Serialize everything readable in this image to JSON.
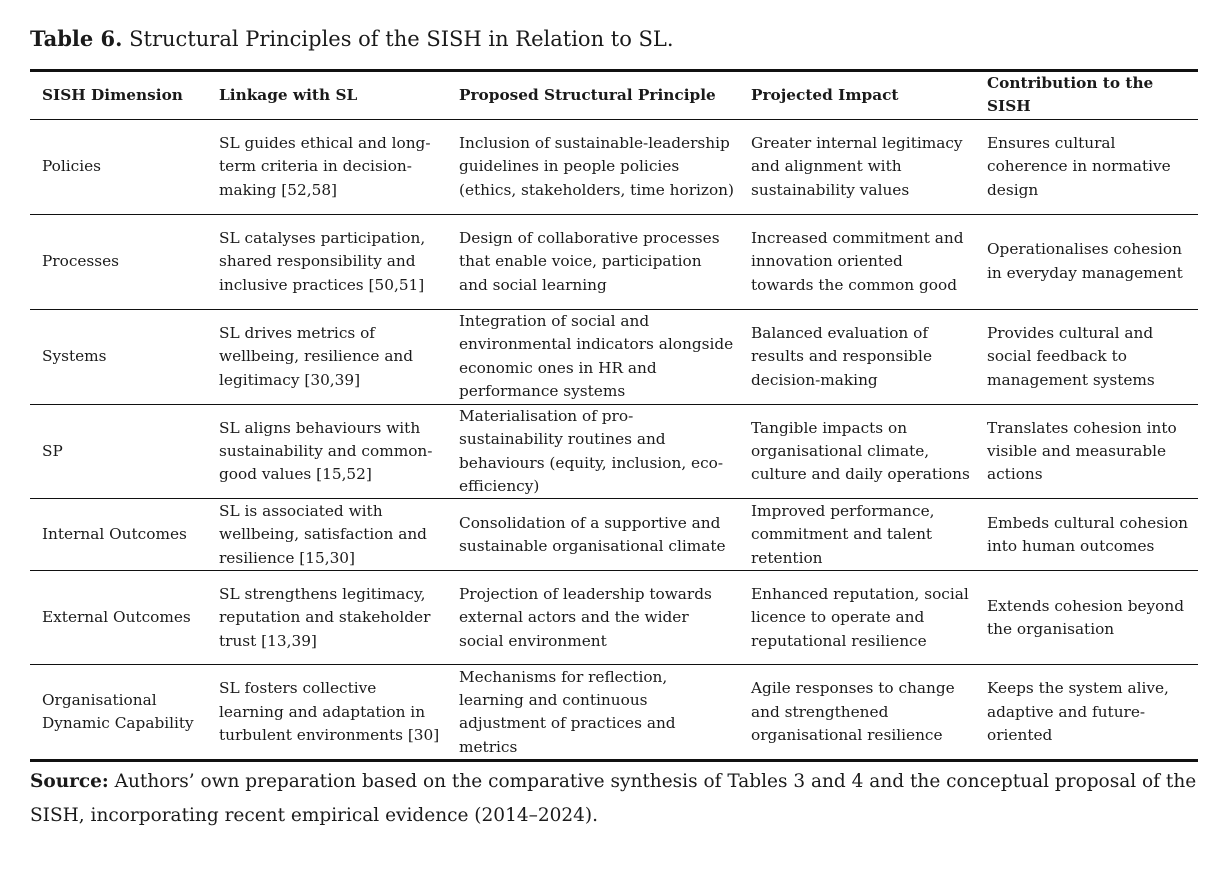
{
  "caption": {
    "label": "Table 6.",
    "text": "Structural Principles of the SISH in Relation to SL."
  },
  "table": {
    "header": [
      "SISH Dimension",
      "Linkage with SL",
      "Proposed Structural Principle",
      "Projected Impact",
      "Contribution to the SISH"
    ],
    "rows": [
      [
        "Policies",
        "SL guides ethical and long-term criteria in decision-making [52,58]",
        "Inclusion of sustainable-leadership guidelines in people policies (ethics, stakeholders, time horizon)",
        "Greater internal legitimacy and alignment with sustainability values",
        "Ensures cultural coherence in normative design"
      ],
      [
        "Processes",
        "SL catalyses participation, shared responsibility and inclusive practices [50,51]",
        "Design of collaborative processes that enable voice, participation and social learning",
        "Increased commitment and innovation oriented towards the common good",
        "Operationalises cohesion in everyday management"
      ],
      [
        "Systems",
        "SL drives metrics of wellbeing, resilience and legitimacy [30,39]",
        "Integration of social and environmental indicators alongside economic ones in HR and performance systems",
        "Balanced evaluation of results and responsible decision-making",
        "Provides cultural and social feedback to management systems"
      ],
      [
        "SP",
        "SL aligns behaviours with sustainability and common-good values [15,52]",
        "Materialisation of pro-sustainability routines and behaviours (equity, inclusion, eco-efficiency)",
        "Tangible impacts on organisational climate, culture and daily operations",
        "Translates cohesion into visible and measurable actions"
      ],
      [
        "Internal Outcomes",
        "SL is associated with wellbeing, satisfaction and resilience [15,30]",
        "Consolidation of a supportive and sustainable organisational climate",
        "Improved performance, commitment and talent retention",
        "Embeds cultural cohesion into human outcomes"
      ],
      [
        "External Outcomes",
        "SL strengthens legitimacy, reputation and stakeholder trust [13,39]",
        "Projection of leadership towards external actors and the wider social environment",
        "Enhanced reputation, social licence to operate and reputational resilience",
        "Extends cohesion beyond the organisation"
      ],
      [
        "Organisational Dynamic Capability",
        "SL fosters collective learning and adaptation in turbulent environments [30]",
        "Mechanisms for reflection, learning and continuous adjustment of practices and metrics",
        "Agile responses to change and strengthened organisational resilience",
        "Keeps the system alive, adaptive and future-oriented"
      ]
    ]
  },
  "source": {
    "label": "Source:",
    "text": "Authors’ own preparation based on the comparative synthesis of Tables 3 and 4 and the conceptual proposal of the SISH, incorporating recent empirical evidence (2014–2024)."
  }
}
